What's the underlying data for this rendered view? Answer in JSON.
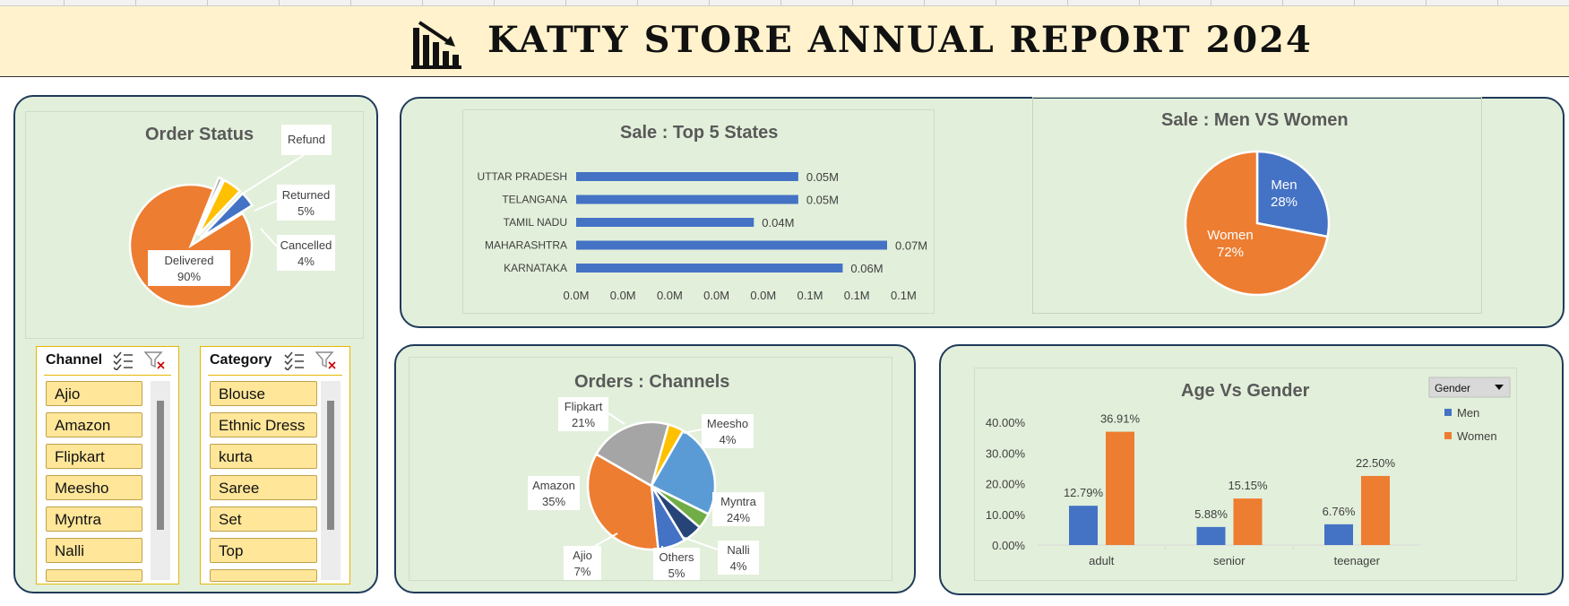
{
  "header": {
    "title": "KATTY STORE ANNUAL REPORT 2024",
    "logo_icon": "bar-chart-down-icon"
  },
  "slicers": [
    {
      "title": "Channel",
      "items": [
        "Ajio",
        "Amazon",
        "Flipkart",
        "Meesho",
        "Myntra",
        "Nalli"
      ]
    },
    {
      "title": "Category",
      "items": [
        "Blouse",
        "Ethnic Dress",
        "kurta",
        "Saree",
        "Set",
        "Top"
      ]
    }
  ],
  "chart_data": [
    {
      "type": "pie",
      "title": "Order Status",
      "categories": [
        "Delivered",
        "Refund",
        "Returned",
        "Cancelled"
      ],
      "values": [
        90,
        1,
        5,
        4
      ],
      "labels": [
        "Delivered\n90%",
        "Refund",
        "Returned\n5%",
        "Cancelled\n4%"
      ],
      "colors": [
        "#ed7d31",
        "#a5a5a5",
        "#ffc000",
        "#4472c4"
      ]
    },
    {
      "type": "bar",
      "orientation": "horizontal",
      "title": "Sale : Top 5 States",
      "categories": [
        "UTTAR PRADESH",
        "TELANGANA",
        "TAMIL NADU",
        "MAHARASHTRA",
        "KARNATAKA"
      ],
      "values": [
        0.05,
        0.05,
        0.04,
        0.07,
        0.06
      ],
      "data_labels": [
        "0.05M",
        "0.05M",
        "0.04M",
        "0.07M",
        "0.06M"
      ],
      "x_ticks": [
        "0.0M",
        "0.0M",
        "0.0M",
        "0.0M",
        "0.0M",
        "0.1M",
        "0.1M",
        "0.1M"
      ],
      "xlim": [
        0,
        0.07
      ],
      "color": "#4472c4"
    },
    {
      "type": "pie",
      "title": "Sale : Men VS Women",
      "categories": [
        "Men",
        "Women"
      ],
      "values": [
        28,
        72
      ],
      "labels": [
        "Men\n28%",
        "Women\n72%"
      ],
      "colors": [
        "#4472c4",
        "#ed7d31"
      ]
    },
    {
      "type": "pie",
      "title": "Orders : Channels",
      "categories": [
        "Meesho",
        "Myntra",
        "Nalli",
        "Others",
        "Ajio",
        "Amazon",
        "Flipkart"
      ],
      "values": [
        4,
        24,
        4,
        5,
        7,
        35,
        21
      ],
      "labels": [
        "Meesho\n4%",
        "Myntra\n24%",
        "Nalli\n4%",
        "Others\n5%",
        "Ajio\n7%",
        "Amazon\n35%",
        "Flipkart\n21%"
      ],
      "colors": [
        "#ffc000",
        "#5b9bd5",
        "#70ad47",
        "#264478",
        "#4472c4",
        "#ed7d31",
        "#a5a5a5"
      ]
    },
    {
      "type": "bar",
      "title": "Age Vs Gender",
      "categories": [
        "adult",
        "senior",
        "teenager"
      ],
      "series": [
        {
          "name": "Men",
          "values": [
            12.79,
            5.88,
            6.76
          ],
          "labels": [
            "12.79%",
            "5.88%",
            "6.76%"
          ],
          "color": "#4472c4"
        },
        {
          "name": "Women",
          "values": [
            36.91,
            15.15,
            22.5
          ],
          "labels": [
            "36.91%",
            "15.15%",
            "22.50%"
          ],
          "color": "#ed7d31"
        }
      ],
      "y_ticks": [
        "0.00%",
        "10.00%",
        "20.00%",
        "30.00%",
        "40.00%"
      ],
      "ylim": [
        0,
        40
      ],
      "legend_title": "Gender",
      "legend_position": "top-right"
    }
  ]
}
